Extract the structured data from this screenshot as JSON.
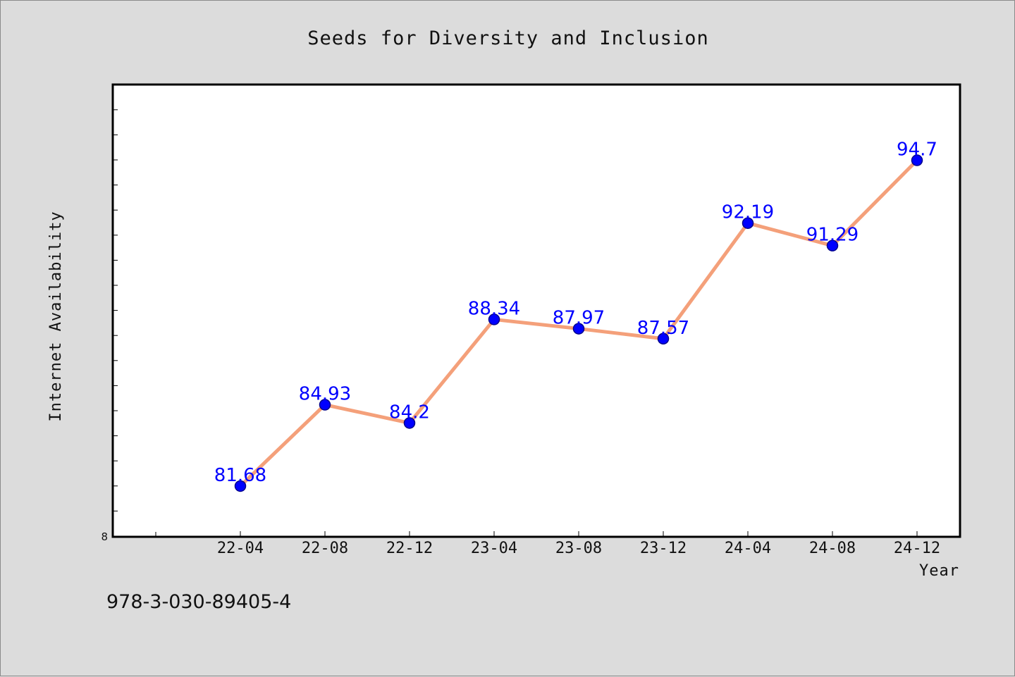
{
  "chart_data": {
    "type": "line",
    "title": "Seeds for Diversity and Inclusion",
    "xlabel": "Year",
    "ylabel": "Internet Availability",
    "categories": [
      "22-04",
      "22-08",
      "22-12",
      "23-04",
      "23-08",
      "23-12",
      "24-04",
      "24-08",
      "24-12"
    ],
    "series": [
      {
        "values": [
          81.68,
          84.93,
          84.2,
          88.34,
          87.97,
          87.57,
          92.19,
          91.29,
          94.7
        ],
        "line_color": "#f4a07a",
        "marker_color": "#0000ff",
        "label_color": "#0000ff"
      }
    ],
    "data_labels": [
      "81.68",
      "84.93",
      "84.2",
      "88.34",
      "87.97",
      "87.57",
      "92.19",
      "91.29",
      "94.7"
    ],
    "y_tick_labels": [
      "8"
    ],
    "ylim": [
      79.68,
      97.7
    ],
    "grid": false,
    "legend": "none"
  },
  "footer": {
    "isbn": "978-3-030-89405-4"
  },
  "colors": {
    "background": "#dcdcdc",
    "plot_area": "#ffffff",
    "line": "#f4a07a",
    "marker": "#0000ff"
  }
}
